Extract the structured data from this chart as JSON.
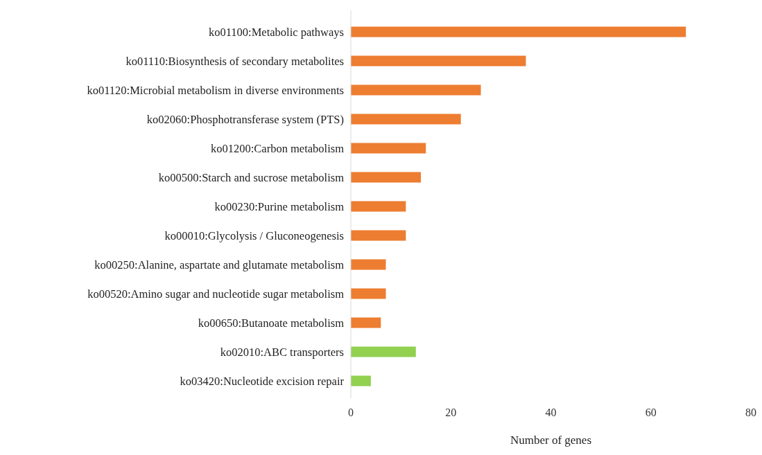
{
  "chart_data": {
    "type": "bar",
    "orientation": "horizontal",
    "xlabel": "Number of genes",
    "categories": [
      "ko01100:Metabolic pathways",
      "ko01110:Biosynthesis of secondary metabolites",
      "ko01120:Microbial metabolism in diverse environments",
      "ko02060:Phosphotransferase system (PTS)",
      "ko01200:Carbon metabolism",
      "ko00500:Starch and sucrose metabolism",
      "ko00230:Purine metabolism",
      "ko00010:Glycolysis / Gluconeogenesis",
      "ko00250:Alanine, aspartate and glutamate metabolism",
      "ko00520:Amino sugar and nucleotide sugar metabolism",
      "ko00650:Butanoate metabolism",
      "ko02010:ABC transporters",
      "ko03420:Nucleotide excision repair"
    ],
    "values": [
      67,
      35,
      26,
      22,
      15,
      14,
      11,
      11,
      7,
      7,
      6,
      13,
      4
    ],
    "colors": [
      "#ed7d31",
      "#ed7d31",
      "#ed7d31",
      "#ed7d31",
      "#ed7d31",
      "#ed7d31",
      "#ed7d31",
      "#ed7d31",
      "#ed7d31",
      "#ed7d31",
      "#ed7d31",
      "#92d050",
      "#92d050"
    ],
    "xlim": [
      0,
      80
    ],
    "xticks": [
      0,
      20,
      40,
      60,
      80
    ]
  }
}
